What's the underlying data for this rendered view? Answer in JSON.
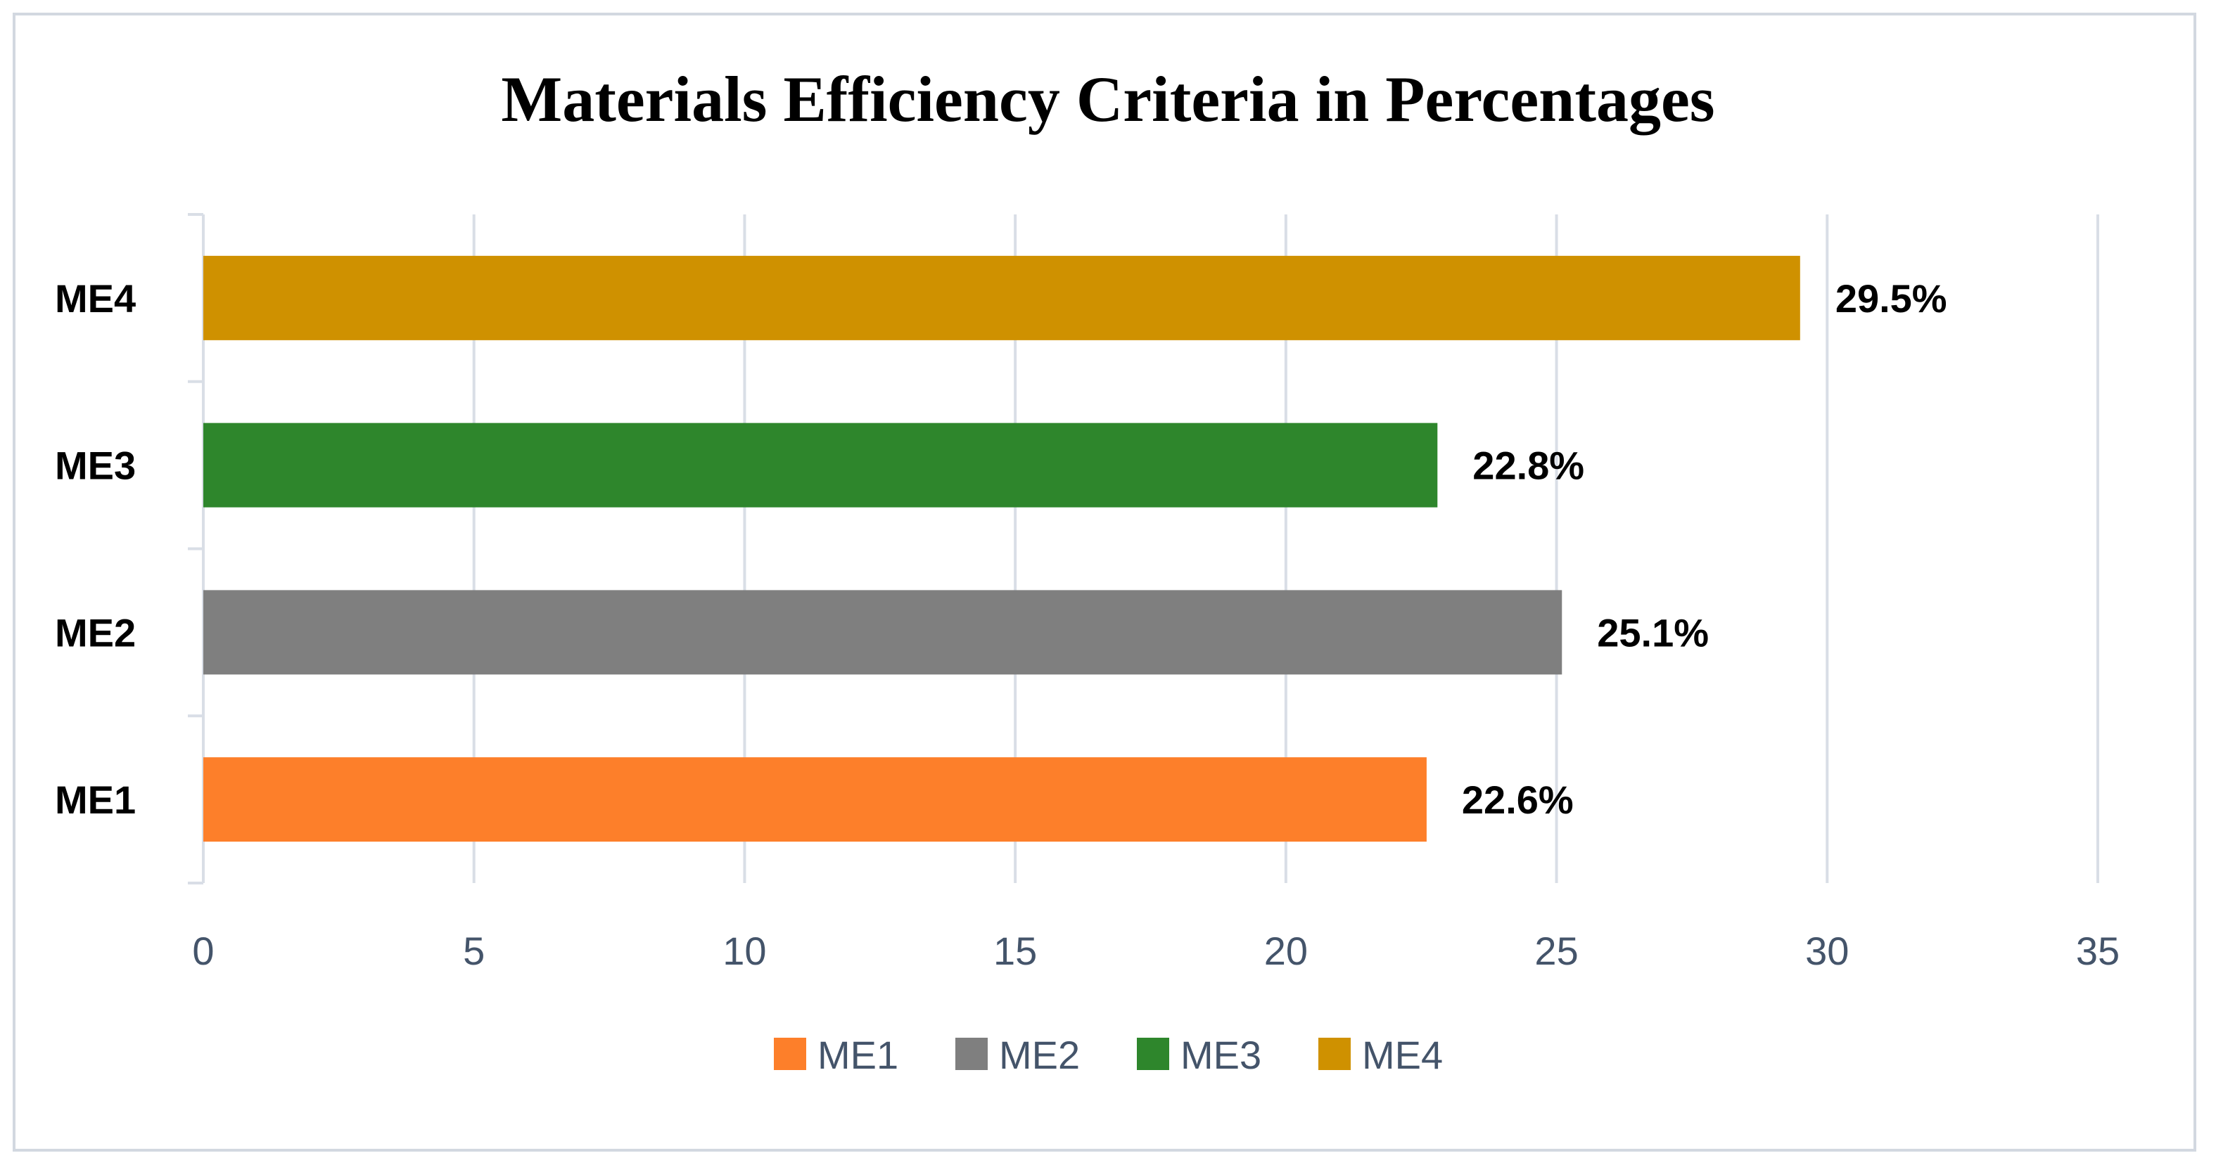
{
  "chart_data": {
    "type": "bar",
    "orientation": "horizontal",
    "title": "Materials Efficiency Criteria in Percentages",
    "categories": [
      "ME1",
      "ME2",
      "ME3",
      "ME4"
    ],
    "values": [
      22.6,
      25.1,
      22.8,
      29.5
    ],
    "data_labels": [
      "22.6%",
      "25.1%",
      "22.8%",
      "29.5%"
    ],
    "colors": [
      "#fd7f2a",
      "#7f7f7f",
      "#2e862c",
      "#cf9100"
    ],
    "xlim": [
      0,
      35
    ],
    "xticks": [
      0,
      5,
      10,
      15,
      20,
      25,
      30,
      35
    ],
    "xtick_labels": [
      "0",
      "5",
      "10",
      "15",
      "20",
      "25",
      "30",
      "35"
    ],
    "grid": true,
    "legend_position": "bottom",
    "legend": [
      "ME1",
      "ME2",
      "ME3",
      "ME4"
    ]
  }
}
